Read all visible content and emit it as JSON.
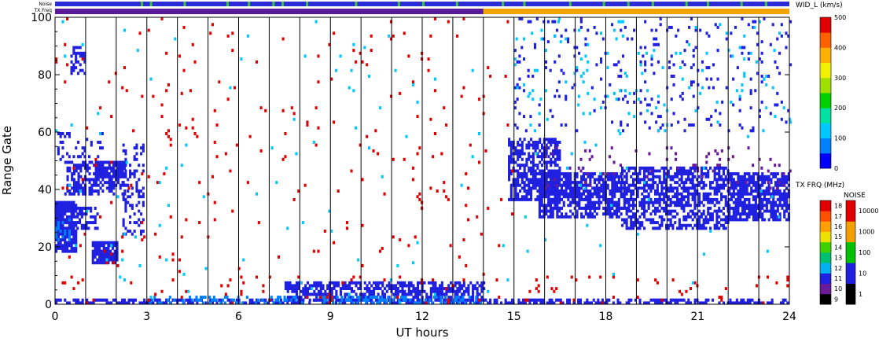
{
  "chart_data": {
    "type": "heatmap",
    "xlabel": "UT hours",
    "ylabel": "Range Gate",
    "xlim": [
      0,
      24
    ],
    "ylim": [
      0,
      100
    ],
    "x_ticks": [
      "0",
      "3",
      "6",
      "9",
      "12",
      "15",
      "18",
      "21",
      "24"
    ],
    "y_ticks": [
      "0",
      "20",
      "40",
      "60",
      "80",
      "100"
    ],
    "hour_dividers": [
      1,
      2,
      3,
      4,
      5,
      6,
      7,
      8,
      9,
      10,
      11,
      12,
      13,
      14,
      15,
      16,
      17,
      18,
      19,
      20,
      21,
      22,
      23,
      24
    ],
    "strip_labels": {
      "noise": "Noise",
      "txfrq": "TX Freq"
    },
    "strips": {
      "txfrq_segments": [
        {
          "start": 0,
          "end": 14,
          "color": "#5a189a"
        },
        {
          "start": 14,
          "end": 24,
          "color": "#f5a300"
        }
      ],
      "noise_base_color": "#2b2bd8",
      "noise_spike_color": "#3ec43e",
      "noise_spikes": [
        2.8,
        3.1,
        4.2,
        5.6,
        6.3,
        7.1,
        7.4,
        8.2,
        9.8,
        11.2,
        12.0,
        13.1,
        14.6,
        15.3,
        16.8,
        17.9,
        18.7,
        19.5,
        20.6,
        21.3,
        22.4,
        23.2
      ]
    },
    "colorbars": {
      "width": {
        "label": "WID_L (km/s)",
        "ticks": [
          "0",
          "100",
          "200",
          "300",
          "400",
          "500"
        ],
        "colors": [
          "#0000ff",
          "#0080ff",
          "#00c8ff",
          "#00e0a0",
          "#00d000",
          "#a0e000",
          "#f0f000",
          "#ffb000",
          "#ff6000",
          "#e00000"
        ]
      },
      "txfrq": {
        "label": "TX FRQ (MHz)",
        "ticks": [
          "9",
          "10",
          "11",
          "12",
          "13",
          "14",
          "15",
          "16",
          "17",
          "18"
        ],
        "colors": [
          "#000000",
          "#6a1b9a",
          "#2020e0",
          "#00b0f0",
          "#00c070",
          "#40d000",
          "#f0e000",
          "#ffa000",
          "#ff5000",
          "#e00000"
        ]
      },
      "noise": {
        "label": "NOISE",
        "ticks": [
          "1",
          "10",
          "100",
          "1000",
          "10000"
        ],
        "colors": [
          "#000000",
          "#2020e0",
          "#00c000",
          "#f0a000",
          "#e00000"
        ]
      }
    },
    "scatter_blocks": [
      {
        "x0": 0.0,
        "x1": 0.7,
        "y0": 18,
        "y1": 36,
        "color": "#2020e0",
        "density": 0.85
      },
      {
        "x0": 0.7,
        "x1": 1.4,
        "y0": 26,
        "y1": 34,
        "color": "#2020e0",
        "density": 0.6
      },
      {
        "x0": 0.0,
        "x1": 0.5,
        "y0": 22,
        "y1": 30,
        "color": "#0080ff",
        "density": 0.3
      },
      {
        "x0": 0.3,
        "x1": 2.3,
        "y0": 38,
        "y1": 50,
        "color": "#2020e0",
        "density": 0.55
      },
      {
        "x0": 1.3,
        "x1": 2.3,
        "y0": 44,
        "y1": 50,
        "color": "#2020e0",
        "density": 0.8
      },
      {
        "x0": 1.2,
        "x1": 2.0,
        "y0": 14,
        "y1": 22,
        "color": "#2020e0",
        "density": 0.85
      },
      {
        "x0": 2.2,
        "x1": 2.9,
        "y0": 24,
        "y1": 56,
        "color": "#2020e0",
        "density": 0.3
      },
      {
        "x0": 0.5,
        "x1": 1.0,
        "y0": 80,
        "y1": 90,
        "color": "#2020e0",
        "density": 0.5
      },
      {
        "x0": 0.0,
        "x1": 1.6,
        "y0": 50,
        "y1": 60,
        "color": "#2020e0",
        "density": 0.15
      },
      {
        "x0": 0.0,
        "x1": 24.0,
        "y0": 0,
        "y1": 2,
        "color": "#2020e0",
        "density": 0.55
      },
      {
        "x0": 7.5,
        "x1": 14.0,
        "y0": 1,
        "y1": 8,
        "color": "#2020e0",
        "density": 0.7
      },
      {
        "x0": 3.0,
        "x1": 14.0,
        "y0": 0,
        "y1": 3,
        "color": "#0080ff",
        "density": 0.3
      },
      {
        "x0": 14.8,
        "x1": 16.5,
        "y0": 36,
        "y1": 58,
        "color": "#2020e0",
        "density": 0.65
      },
      {
        "x0": 15.8,
        "x1": 18.5,
        "y0": 30,
        "y1": 46,
        "color": "#2020e0",
        "density": 0.7
      },
      {
        "x0": 18.5,
        "x1": 22.0,
        "y0": 26,
        "y1": 48,
        "color": "#2020e0",
        "density": 0.6
      },
      {
        "x0": 22.0,
        "x1": 24.0,
        "y0": 29,
        "y1": 46,
        "color": "#2020e0",
        "density": 0.75
      },
      {
        "x0": 15.0,
        "x1": 24.0,
        "y0": 60,
        "y1": 100,
        "color": "#2020e0",
        "density": 0.05
      },
      {
        "x0": 15.0,
        "x1": 24.0,
        "y0": 60,
        "y1": 100,
        "color": "#00c8ff",
        "density": 0.02
      },
      {
        "x0": 0.0,
        "x1": 15.0,
        "y0": 8,
        "y1": 100,
        "color": "#e00000",
        "density": 0.012
      },
      {
        "x0": 0.0,
        "x1": 24.0,
        "y0": 0,
        "y1": 10,
        "color": "#e00000",
        "density": 0.03
      },
      {
        "x0": 0.0,
        "x1": 24.0,
        "y0": 0,
        "y1": 100,
        "color": "#00c8ff",
        "density": 0.004
      },
      {
        "x0": 16.0,
        "x1": 24.0,
        "y0": 40,
        "y1": 55,
        "color": "#6a1b9a",
        "density": 0.04
      }
    ]
  }
}
